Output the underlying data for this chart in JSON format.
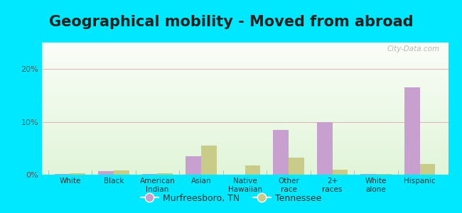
{
  "title": "Geographical mobility - Moved from abroad",
  "categories": [
    "White",
    "Black",
    "American\nIndian",
    "Asian",
    "Native\nHawaiian",
    "Other\nrace",
    "2+\nraces",
    "White\nalone",
    "Hispanic"
  ],
  "murfreesboro": [
    0.2,
    0.7,
    0.15,
    3.5,
    0.0,
    8.5,
    10.0,
    0.15,
    16.5
  ],
  "tennessee": [
    0.25,
    0.8,
    0.25,
    5.5,
    1.8,
    3.2,
    0.9,
    0.15,
    2.0
  ],
  "murfreesboro_color": "#c8a0d0",
  "tennessee_color": "#c8cc88",
  "background_outer": "#00e8ff",
  "ylim": [
    0,
    25
  ],
  "yticks": [
    0,
    10,
    20
  ],
  "ytick_labels": [
    "0%",
    "10%",
    "20%"
  ],
  "bar_width": 0.35,
  "title_fontsize": 15,
  "watermark": "City-Data.com",
  "grid_color": "#e0b8b8",
  "title_color": "#222222"
}
